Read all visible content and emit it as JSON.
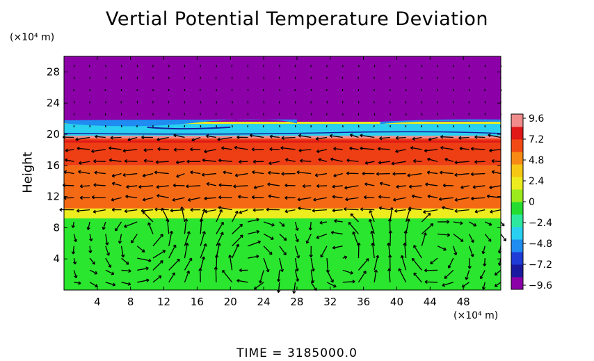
{
  "chart_data": {
    "type": "heatmap",
    "title": "Vertial Potential Temperature Deviation",
    "ylabel": "Height",
    "y_unit": "(×10⁴ m)",
    "x_unit": "(×10⁴ m)",
    "xlim": [
      0,
      52.5
    ],
    "ylim": [
      0,
      30
    ],
    "x_ticks": [
      "4",
      "8",
      "12",
      "16",
      "20",
      "24",
      "28",
      "32",
      "36",
      "40",
      "44",
      "48"
    ],
    "y_ticks": [
      "4",
      "8",
      "12",
      "16",
      "20",
      "24",
      "28"
    ],
    "colorbar": {
      "range": [
        -9.6,
        9.6
      ],
      "tick_labels": [
        "9.6",
        "7.2",
        "4.8",
        "2.4",
        "0",
        "−2.4",
        "−4.8",
        "−7.2",
        "−9.6"
      ],
      "colors": [
        "#8c00a8",
        "#1a1aa0",
        "#1f3cd6",
        "#1e8cf0",
        "#29d0f0",
        "#2ee8a0",
        "#25dc30",
        "#9bea1e",
        "#ecec1e",
        "#f6c814",
        "#f68a14",
        "#f24a14",
        "#e01818",
        "#f08c8c"
      ]
    },
    "layers": [
      {
        "from": 0,
        "to": 9.2,
        "value": 0,
        "color": "#2be62e"
      },
      {
        "from": 9.2,
        "to": 10.5,
        "value": 4.5,
        "color": "#ecec1e"
      },
      {
        "from": 10.5,
        "to": 16,
        "value": 6.5,
        "color": "#f46a14"
      },
      {
        "from": 16,
        "to": 19.8,
        "value": 8.0,
        "color": "#ee3e14"
      },
      {
        "from": 19.8,
        "to": 21.6,
        "value": -3.0,
        "color": "#29d0f0"
      },
      {
        "from": 21.6,
        "to": 30,
        "value": -9.6,
        "color": "#8c00a8"
      }
    ],
    "grid": false,
    "vectors": true
  },
  "footer": {
    "time_text": "TIME  =  3185000.0"
  }
}
